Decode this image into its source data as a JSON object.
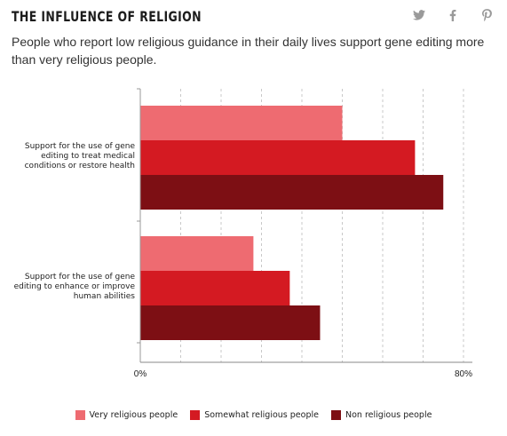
{
  "header": {
    "title": "THE INFLUENCE OF RELIGION",
    "subtitle": "People who report low religious guidance in their daily lives support gene editing more than very religious people."
  },
  "social": {
    "twitter": "twitter-icon",
    "facebook": "facebook-icon",
    "pinterest": "pinterest-icon"
  },
  "chart_data": {
    "type": "bar",
    "orientation": "horizontal",
    "categories": [
      "Support for the use of gene editing to treat medical conditions or restore health",
      "Support for the use of gene editing to enhance or improve human abilities"
    ],
    "category_lines": [
      [
        "Support for the use of gene",
        "editing to treat medical",
        "conditions or restore health"
      ],
      [
        "Support for the use of gene",
        "editing to enhance or improve",
        "human abilities"
      ]
    ],
    "series": [
      {
        "name": "Very religious people",
        "color": "#ee6b71",
        "values": [
          50,
          28
        ]
      },
      {
        "name": "Somewhat religious people",
        "color": "#d41a22",
        "values": [
          68,
          37
        ]
      },
      {
        "name": "Non religious people",
        "color": "#7d0f14",
        "values": [
          75,
          44.5
        ]
      }
    ],
    "xlim": [
      0,
      80
    ],
    "xtick_labels": [
      "0%",
      "80%"
    ],
    "grid": true,
    "legend_position": "bottom"
  }
}
